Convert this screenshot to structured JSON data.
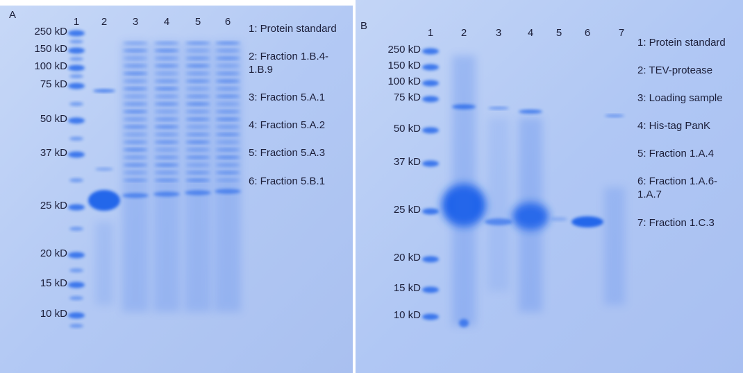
{
  "panels": [
    {
      "label": "A",
      "lanes": [
        "1",
        "2",
        "3",
        "4",
        "5",
        "6"
      ],
      "markers": [
        "250 kD",
        "150 kD",
        "100 kD",
        "75 kD",
        "50 kD",
        "37 kD",
        "25 kD",
        "20 kD",
        "15 kD",
        "10 kD"
      ],
      "legend": [
        [
          "1: Protein standard"
        ],
        [
          "2: Fraction 1.B.4-",
          "1.B.9"
        ],
        [
          "3: Fraction  5.A.1"
        ],
        [
          "4: Fraction 5.A.2"
        ],
        [
          "5: Fraction 5.A.3"
        ],
        [
          "6: Fraction 5.B.1"
        ]
      ]
    },
    {
      "label": "B",
      "lanes": [
        "1",
        "2",
        "3",
        "4",
        "5",
        "6",
        "7"
      ],
      "markers": [
        "250 kD",
        "150 kD",
        "100 kD",
        "75 kD",
        "50 kD",
        "37 kD",
        "25 kD",
        "20 kD",
        "15 kD",
        "10 kD"
      ],
      "legend": [
        [
          "1: Protein standard"
        ],
        [
          "2: TEV-protease"
        ],
        [
          "3: Loading sample"
        ],
        [
          "4: His-tag PanK"
        ],
        [
          "5: Fraction 1.A.4"
        ],
        [
          "6: Fraction 1.A.6-",
          "1.A.7"
        ],
        [
          "7: Fraction 1.C.3"
        ]
      ]
    }
  ]
}
